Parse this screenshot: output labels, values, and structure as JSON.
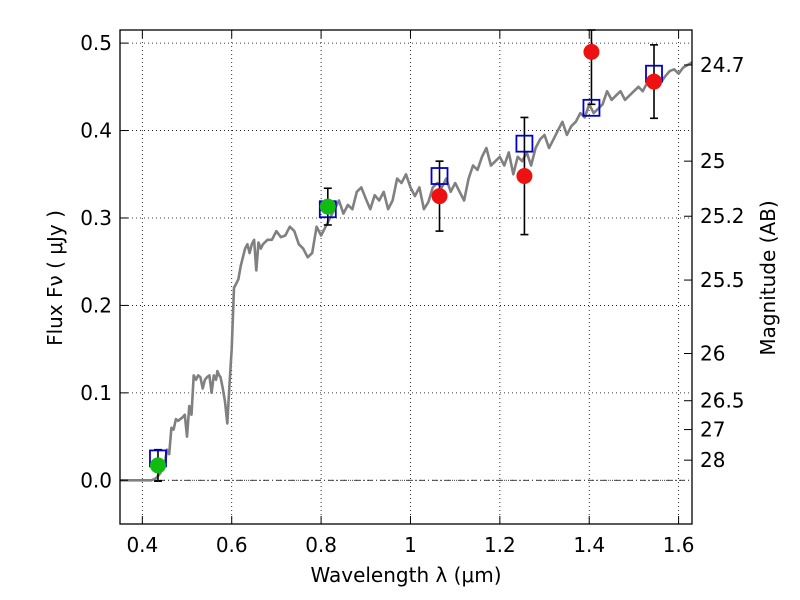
{
  "chart_data": {
    "type": "line",
    "xlabel": "Wavelength  λ (μm)",
    "ylabel": "Flux  Fν  ( μJy )",
    "ylabel_right": "Magnitude (AB)",
    "xlim": [
      0.35,
      1.63
    ],
    "ylim": [
      -0.05,
      0.515
    ],
    "grid": true,
    "x_ticks": [
      {
        "value": 0.4,
        "label": "0.4"
      },
      {
        "value": 0.6,
        "label": "0.6"
      },
      {
        "value": 0.8,
        "label": "0.8"
      },
      {
        "value": 1.0,
        "label": "1"
      },
      {
        "value": 1.2,
        "label": "1.2"
      },
      {
        "value": 1.4,
        "label": "1.4"
      },
      {
        "value": 1.6,
        "label": "1.6"
      }
    ],
    "y_ticks": [
      {
        "value": 0.0,
        "label": "0.0"
      },
      {
        "value": 0.1,
        "label": "0.1"
      },
      {
        "value": 0.2,
        "label": "0.2"
      },
      {
        "value": 0.3,
        "label": "0.3"
      },
      {
        "value": 0.4,
        "label": "0.4"
      },
      {
        "value": 0.5,
        "label": "0.5"
      }
    ],
    "right_ticks": [
      {
        "flux": 0.475,
        "label": "24.7"
      },
      {
        "flux": 0.365,
        "label": "25"
      },
      {
        "flux": 0.302,
        "label": "25.2"
      },
      {
        "flux": 0.229,
        "label": "25.5"
      },
      {
        "flux": 0.145,
        "label": "26"
      },
      {
        "flux": 0.091,
        "label": "26.5"
      },
      {
        "flux": 0.058,
        "label": "27"
      },
      {
        "flux": 0.023,
        "label": "28"
      }
    ],
    "series": [
      {
        "kind": "spectrum",
        "color": "#808080",
        "x": [
          0.35,
          0.42,
          0.43,
          0.44,
          0.445,
          0.45,
          0.455,
          0.46,
          0.465,
          0.47,
          0.475,
          0.48,
          0.49,
          0.495,
          0.5,
          0.505,
          0.51,
          0.515,
          0.52,
          0.525,
          0.53,
          0.535,
          0.54,
          0.545,
          0.55,
          0.555,
          0.56,
          0.565,
          0.568,
          0.572,
          0.575,
          0.58,
          0.585,
          0.59,
          0.595,
          0.6,
          0.605,
          0.61,
          0.615,
          0.62,
          0.625,
          0.63,
          0.635,
          0.64,
          0.645,
          0.65,
          0.655,
          0.66,
          0.665,
          0.67,
          0.68,
          0.69,
          0.7,
          0.71,
          0.72,
          0.73,
          0.74,
          0.75,
          0.76,
          0.77,
          0.78,
          0.79,
          0.8,
          0.81,
          0.82,
          0.83,
          0.84,
          0.85,
          0.86,
          0.87,
          0.88,
          0.89,
          0.9,
          0.91,
          0.92,
          0.93,
          0.94,
          0.95,
          0.96,
          0.97,
          0.98,
          0.99,
          1.0,
          1.01,
          1.02,
          1.03,
          1.04,
          1.05,
          1.06,
          1.07,
          1.08,
          1.09,
          1.1,
          1.11,
          1.12,
          1.13,
          1.14,
          1.15,
          1.16,
          1.17,
          1.18,
          1.19,
          1.2,
          1.21,
          1.22,
          1.23,
          1.24,
          1.25,
          1.26,
          1.27,
          1.28,
          1.29,
          1.3,
          1.31,
          1.32,
          1.33,
          1.34,
          1.35,
          1.36,
          1.37,
          1.38,
          1.39,
          1.4,
          1.41,
          1.42,
          1.43,
          1.44,
          1.45,
          1.46,
          1.47,
          1.48,
          1.49,
          1.5,
          1.51,
          1.52,
          1.53,
          1.54,
          1.55,
          1.56,
          1.57,
          1.58,
          1.59,
          1.6,
          1.61,
          1.63
        ],
        "y": [
          0.0,
          0.0,
          0.002,
          0.008,
          0.02,
          0.018,
          0.035,
          0.03,
          0.06,
          0.058,
          0.07,
          0.068,
          0.072,
          0.075,
          0.05,
          0.085,
          0.075,
          0.12,
          0.115,
          0.12,
          0.118,
          0.105,
          0.115,
          0.118,
          0.12,
          0.1,
          0.12,
          0.115,
          0.125,
          0.12,
          0.118,
          0.105,
          0.09,
          0.065,
          0.11,
          0.15,
          0.22,
          0.225,
          0.23,
          0.245,
          0.255,
          0.265,
          0.27,
          0.26,
          0.27,
          0.275,
          0.24,
          0.272,
          0.265,
          0.27,
          0.275,
          0.275,
          0.285,
          0.278,
          0.28,
          0.29,
          0.285,
          0.27,
          0.265,
          0.255,
          0.26,
          0.29,
          0.28,
          0.29,
          0.3,
          0.31,
          0.32,
          0.305,
          0.315,
          0.31,
          0.33,
          0.335,
          0.322,
          0.31,
          0.326,
          0.32,
          0.33,
          0.31,
          0.32,
          0.345,
          0.34,
          0.35,
          0.335,
          0.325,
          0.335,
          0.31,
          0.318,
          0.335,
          0.34,
          0.335,
          0.345,
          0.33,
          0.34,
          0.33,
          0.32,
          0.345,
          0.36,
          0.355,
          0.37,
          0.38,
          0.36,
          0.365,
          0.37,
          0.36,
          0.375,
          0.35,
          0.37,
          0.365,
          0.375,
          0.36,
          0.38,
          0.39,
          0.395,
          0.38,
          0.39,
          0.4,
          0.41,
          0.395,
          0.405,
          0.41,
          0.42,
          0.415,
          0.43,
          0.42,
          0.425,
          0.43,
          0.445,
          0.435,
          0.44,
          0.445,
          0.435,
          0.44,
          0.445,
          0.45,
          0.445,
          0.455,
          0.45,
          0.46,
          0.455,
          0.462,
          0.468,
          0.47,
          0.465,
          0.472,
          0.478
        ]
      },
      {
        "kind": "model-photometry",
        "marker": "square",
        "color": "#0000cc",
        "x": [
          0.435,
          0.815,
          1.065,
          1.255,
          1.405,
          1.545
        ],
        "y": [
          0.025,
          0.31,
          0.348,
          0.385,
          0.426,
          0.465
        ]
      },
      {
        "kind": "observed",
        "marker": "circle",
        "color": "#ee1111",
        "x": [
          1.065,
          1.255,
          1.405,
          1.545
        ],
        "y": [
          0.325,
          0.348,
          0.49,
          0.456
        ],
        "yerr_low": [
          0.04,
          0.067,
          0.06,
          0.042
        ],
        "yerr_high": [
          0.04,
          0.067,
          0.03,
          0.042
        ]
      },
      {
        "kind": "observed",
        "marker": "circle",
        "color": "#11bb11",
        "x": [
          0.435,
          0.815
        ],
        "y": [
          0.017,
          0.313
        ],
        "yerr_low": [
          0.018,
          0.021
        ],
        "yerr_high": [
          0.018,
          0.021
        ]
      }
    ]
  }
}
